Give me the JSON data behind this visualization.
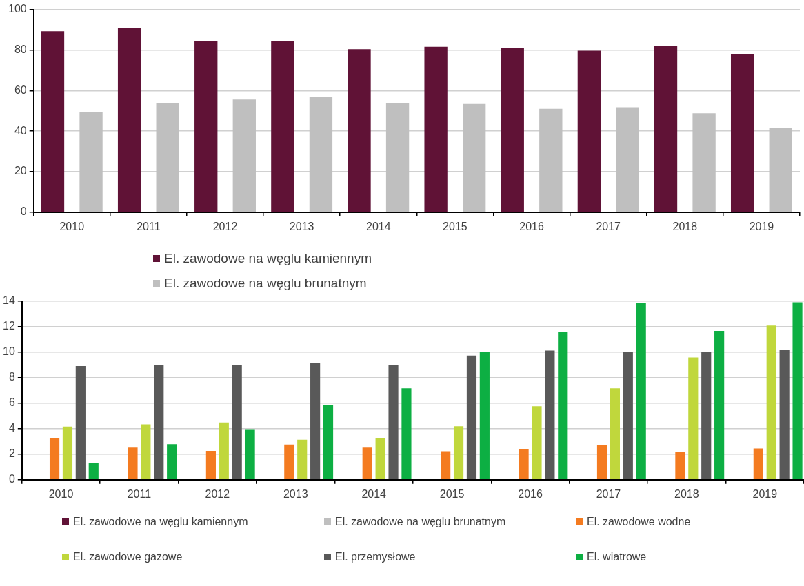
{
  "chart_data": [
    {
      "type": "bar",
      "categories": [
        "2010",
        "2011",
        "2012",
        "2013",
        "2014",
        "2015",
        "2016",
        "2017",
        "2018",
        "2019"
      ],
      "ylim": [
        0,
        100
      ],
      "yticks": [
        0,
        20,
        40,
        60,
        80,
        100
      ],
      "grid": "y",
      "legend": "bottom",
      "series": [
        {
          "name": "El. zawodowe na węglu kamiennym",
          "color": "#601236",
          "values": [
            89.2,
            90.8,
            84.5,
            84.6,
            80.4,
            81.6,
            81.1,
            79.6,
            82.1,
            77.9
          ]
        },
        {
          "name": "El. zawodowe na węglu brunatnym",
          "color": "#bfbfbf",
          "values": [
            49.4,
            53.7,
            55.6,
            57.0,
            54.0,
            53.4,
            51.0,
            51.8,
            48.8,
            41.4
          ]
        }
      ]
    },
    {
      "type": "bar",
      "categories": [
        "2010",
        "2011",
        "2012",
        "2013",
        "2014",
        "2015",
        "2016",
        "2017",
        "2018",
        "2019"
      ],
      "ylim": [
        0,
        14
      ],
      "yticks": [
        0,
        2,
        4,
        6,
        8,
        10,
        12,
        14
      ],
      "grid": "y",
      "legend": "bottom",
      "series": [
        {
          "name": "El. zawodowe na węglu kamiennym",
          "color": "#601236",
          "values": [
            null,
            null,
            null,
            null,
            null,
            null,
            null,
            null,
            null,
            null
          ]
        },
        {
          "name": "El. zawodowe na węglu brunatnym",
          "color": "#bfbfbf",
          "values": [
            null,
            null,
            null,
            null,
            null,
            null,
            null,
            null,
            null,
            null
          ]
        },
        {
          "name": "El. zawodowe wodne",
          "color": "#f47b20",
          "values": [
            3.26,
            2.52,
            2.26,
            2.76,
            2.52,
            2.23,
            2.37,
            2.74,
            2.17,
            2.45
          ]
        },
        {
          "name": "El. zawodowe gazowe",
          "color": "#c0d73c",
          "values": [
            4.16,
            4.34,
            4.48,
            3.14,
            3.26,
            4.19,
            5.75,
            7.16,
            9.57,
            12.07
          ]
        },
        {
          "name": "El. przemysłowe",
          "color": "#595959",
          "values": [
            8.9,
            9.0,
            9.0,
            9.16,
            9.0,
            9.73,
            10.12,
            10.04,
            10.0,
            10.18
          ]
        },
        {
          "name": "El. wiatrowe",
          "color": "#0daf43",
          "values": [
            1.3,
            2.78,
            3.96,
            5.82,
            7.16,
            10.02,
            11.6,
            13.84,
            11.66,
            13.9
          ]
        }
      ]
    }
  ]
}
